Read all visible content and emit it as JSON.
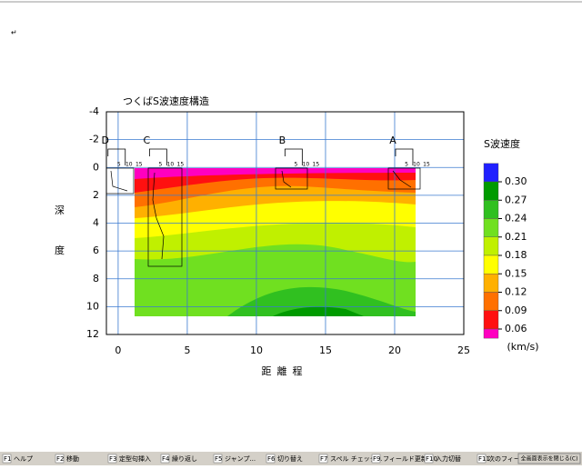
{
  "chart_data": {
    "type": "contour",
    "title": "つくばS波速度構造",
    "xlabel": "距離程",
    "ylabel": [
      "深",
      "度"
    ],
    "xlim": [
      -0.85,
      25
    ],
    "xticks": [
      0,
      5,
      10,
      15,
      20,
      25
    ],
    "ylim": [
      12,
      -4
    ],
    "yticks": [
      -4,
      -2,
      0,
      2,
      4,
      6,
      8,
      10,
      12
    ],
    "grid": true,
    "boreholes": [
      "A",
      "B",
      "C",
      "D"
    ],
    "borehole_x": [
      20,
      12,
      2.2,
      -0.8
    ],
    "borehole_ticks": [
      5,
      10,
      15
    ],
    "colorbar": {
      "title": "S波速度",
      "unit": "(km/s)",
      "ticks": [
        {
          "value": 0.3,
          "label": "0.30"
        },
        {
          "value": 0.27,
          "label": "0.27"
        },
        {
          "value": 0.24,
          "label": "0.24"
        },
        {
          "value": 0.21,
          "label": "0.21"
        },
        {
          "value": 0.18,
          "label": "0.18"
        },
        {
          "value": 0.15,
          "label": "0.15"
        },
        {
          "value": 0.12,
          "label": "0.12"
        },
        {
          "value": 0.09,
          "label": "0.09"
        },
        {
          "value": 0.06,
          "label": "0.06"
        }
      ],
      "colors": [
        "#2020ff",
        "#009a00",
        "#30c020",
        "#70e020",
        "#c0f000",
        "#ffff00",
        "#ffb000",
        "#ff7000",
        "#ff1010",
        "#ff00c0"
      ]
    }
  },
  "status_bar": [
    {
      "key": "F1",
      "label": "ヘルプ"
    },
    {
      "key": "F2",
      "label": "移動"
    },
    {
      "key": "F3",
      "label": "定型句挿入"
    },
    {
      "key": "F4",
      "label": "繰り返し"
    },
    {
      "key": "F5",
      "label": "ジャンプ..."
    },
    {
      "key": "F6",
      "label": "切り替え"
    },
    {
      "key": "F7",
      "label": "スペル チェック..."
    },
    {
      "key": "F9",
      "label": "フィールド更新"
    },
    {
      "key": "F10",
      "label": "入力切替"
    },
    {
      "key": "F11",
      "label": "次のフィールド"
    }
  ],
  "close_button": "全画面表示を閉じる(C)"
}
